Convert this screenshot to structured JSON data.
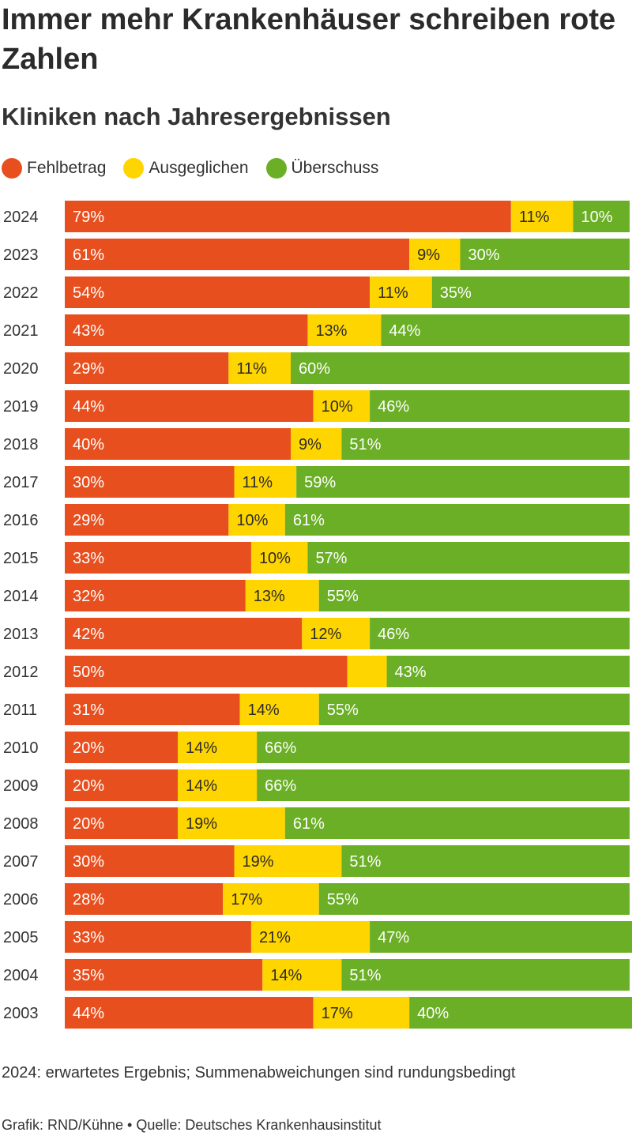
{
  "header": {
    "title": "Immer mehr Krankenhäuser schreiben rote Zahlen",
    "subtitle": "Kliniken nach Jahresergebnissen"
  },
  "footer": {
    "note": "2024: erwartetes Ergebnis; Summenabweichungen sind rundungsbedingt",
    "credit": "Grafik: RND/Kühne • Quelle: Deutsches Krankenhausinstitut"
  },
  "colors": {
    "fehlbetrag": "#e84f1e",
    "ausgeglichen": "#ffd500",
    "ueberschuss": "#6aaf25",
    "label_dark": "#2b2b2b",
    "label_light": "#ffffff"
  },
  "chart_data": {
    "type": "bar",
    "orientation": "horizontal",
    "stacked": "percent",
    "title": "Immer mehr Krankenhäuser schreiben rote Zahlen",
    "subtitle": "Kliniken nach Jahresergebnissen",
    "legend_position": "top-left",
    "grid": false,
    "categories": [
      "2024",
      "2023",
      "2022",
      "2021",
      "2020",
      "2019",
      "2018",
      "2017",
      "2016",
      "2015",
      "2014",
      "2013",
      "2012",
      "2011",
      "2010",
      "2009",
      "2008",
      "2007",
      "2006",
      "2005",
      "2004",
      "2003"
    ],
    "series": [
      {
        "name": "Fehlbetrag",
        "values": [
          79,
          61,
          54,
          43,
          29,
          44,
          40,
          30,
          29,
          33,
          32,
          42,
          50,
          31,
          20,
          20,
          20,
          30,
          28,
          33,
          35,
          44
        ],
        "labels": [
          "79%",
          "61%",
          "54%",
          "43%",
          "29%",
          "44%",
          "40%",
          "30%",
          "29%",
          "33%",
          "32%",
          "42%",
          "50%",
          "31%",
          "20%",
          "20%",
          "20%",
          "30%",
          "28%",
          "33%",
          "35%",
          "44%"
        ]
      },
      {
        "name": "Ausgeglichen",
        "values": [
          11,
          9,
          11,
          13,
          11,
          10,
          9,
          11,
          10,
          10,
          13,
          12,
          7,
          14,
          14,
          14,
          19,
          19,
          17,
          21,
          14,
          17
        ],
        "labels": [
          "11%",
          "9%",
          "11%",
          "13%",
          "11%",
          "10%",
          "9%",
          "11%",
          "10%",
          "10%",
          "13%",
          "12%",
          "",
          "14%",
          "14%",
          "14%",
          "19%",
          "19%",
          "17%",
          "21%",
          "14%",
          "17%"
        ]
      },
      {
        "name": "Überschuss",
        "values": [
          10,
          30,
          35,
          44,
          60,
          46,
          51,
          59,
          61,
          57,
          55,
          46,
          43,
          55,
          66,
          66,
          61,
          51,
          55,
          47,
          51,
          40
        ],
        "labels": [
          "10%",
          "30%",
          "35%",
          "44%",
          "60%",
          "46%",
          "51%",
          "59%",
          "61%",
          "57%",
          "55%",
          "46%",
          "43%",
          "55%",
          "66%",
          "66%",
          "61%",
          "51%",
          "55%",
          "47%",
          "51%",
          "40%"
        ]
      }
    ],
    "xlim": [
      0,
      100
    ]
  }
}
